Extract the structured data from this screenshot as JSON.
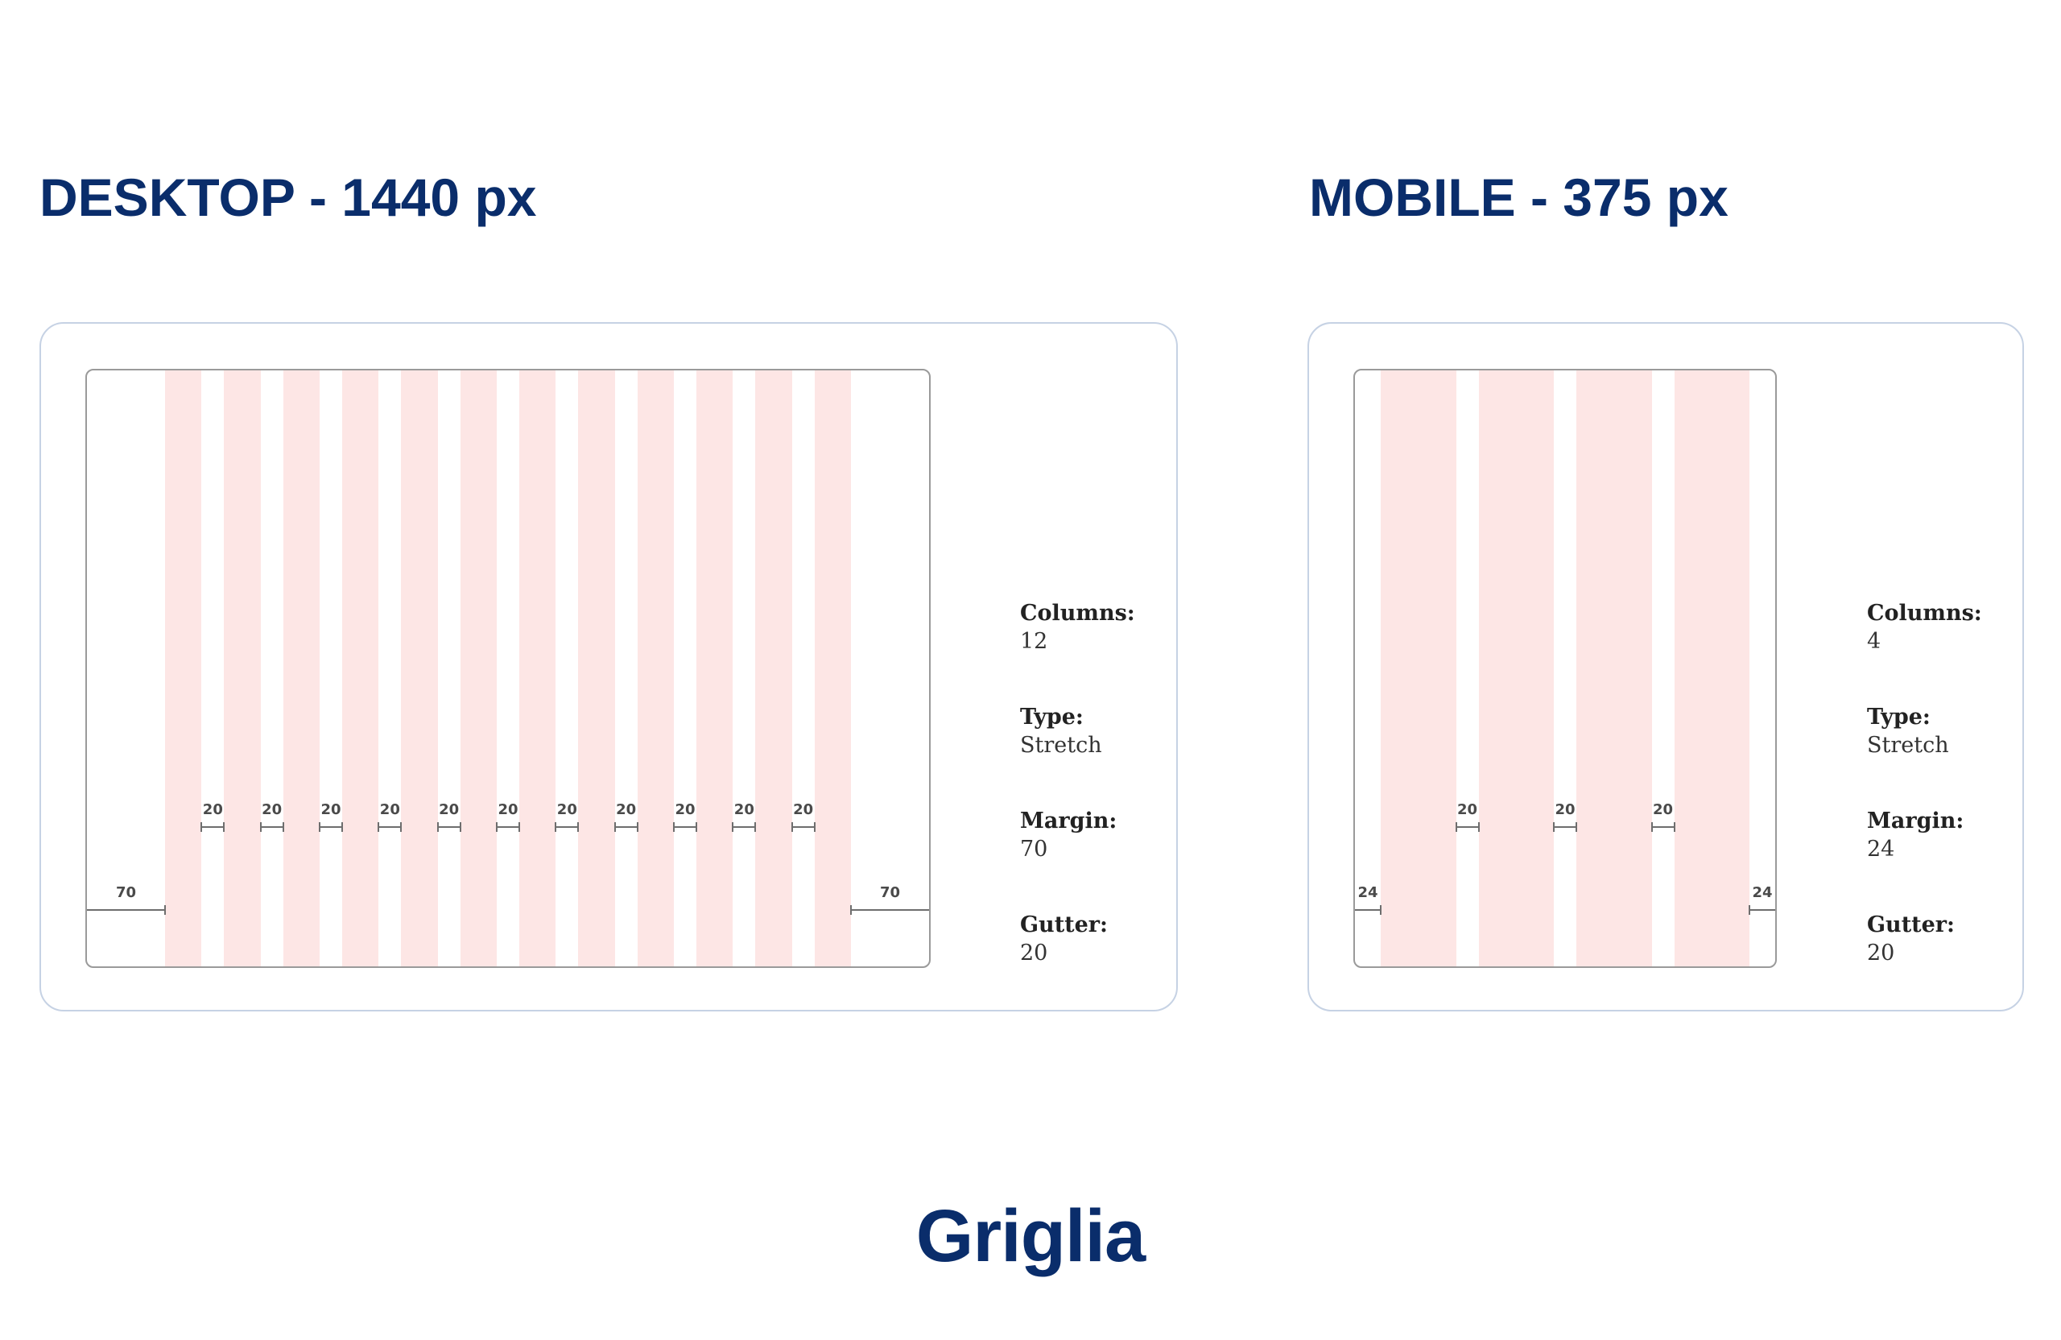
{
  "desktop": {
    "title": "DESKTOP - 1440 px",
    "columns_count": 12,
    "margin_value": 70,
    "gutter_value": 20,
    "margin_label": "70",
    "gutter_label": "20",
    "specs": {
      "columns_label": "Columns:",
      "columns_value": "12",
      "type_label": "Type:",
      "type_value": "Stretch",
      "margin_label": "Margin:",
      "margin_value": "70",
      "gutter_label": "Gutter:",
      "gutter_value": "20"
    }
  },
  "mobile": {
    "title": "MOBILE - 375 px",
    "columns_count": 4,
    "margin_value": 24,
    "gutter_value": 20,
    "margin_label": "24",
    "gutter_label": "20",
    "specs": {
      "columns_label": "Columns:",
      "columns_value": "4",
      "type_label": "Type:",
      "type_value": "Stretch",
      "margin_label": "Margin:",
      "margin_value": "24",
      "gutter_label": "Gutter:",
      "gutter_value": "20"
    }
  },
  "logo": {
    "text": "Griglia"
  },
  "colors": {
    "title": "#0a2d6b",
    "column_fill": "#fde6e5",
    "card_border": "#c6d2e4",
    "frame_border": "#9a9a9a"
  }
}
